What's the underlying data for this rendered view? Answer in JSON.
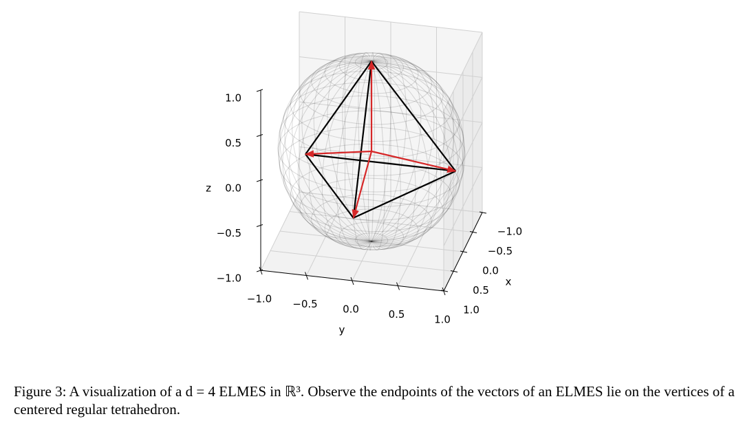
{
  "chart_data": {
    "type": "vector3d",
    "xlabel": "x",
    "ylabel": "y",
    "zlabel": "z",
    "xlim": [
      -1,
      1
    ],
    "ylim": [
      -1,
      1
    ],
    "zlim": [
      -1,
      1
    ],
    "xticks": [
      {
        "value": -1,
        "label": "−1.0"
      },
      {
        "value": -0.5,
        "label": "−0.5"
      },
      {
        "value": 0,
        "label": "0.0"
      },
      0.5,
      {
        "value": 1,
        "label": "1.0"
      }
    ],
    "yticks": [
      {
        "value": -1,
        "label": "−1.0"
      },
      {
        "value": -0.5,
        "label": "−0.5"
      },
      {
        "value": 0,
        "label": "0.0"
      },
      0.5,
      {
        "value": 1,
        "label": "1.0"
      }
    ],
    "zticks": [
      {
        "value": -1,
        "label": "−1.0"
      },
      {
        "value": -0.5,
        "label": "−0.5"
      },
      {
        "value": 0,
        "label": "0.0"
      },
      0.5,
      {
        "value": 1,
        "label": "1.0"
      }
    ],
    "grid": true,
    "vector_color": "#d62728",
    "edge_color": "#000000",
    "vectors": {
      "x": [
        0,
        -0.47,
        -0.47,
        0.94
      ],
      "y": [
        0,
        0.82,
        -0.82,
        0
      ],
      "z": [
        1,
        -0.33,
        -0.33,
        -0.33
      ]
    }
  },
  "caption": "Figure 3: A visualization of a d = 4 ELMES in ℝ³. Observe the endpoints of the vectors of an ELMES lie on the vertices of a centered regular tetrahedron."
}
